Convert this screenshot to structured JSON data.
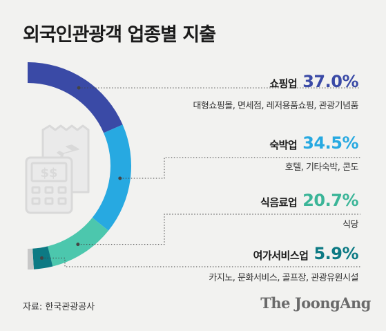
{
  "title": "외국인관광객 업종별 지출",
  "chart_data": {
    "type": "donut",
    "unit": "%",
    "categories": [
      {
        "name": "쇼핑업",
        "value": 37.0,
        "label": "37.0%",
        "detail": "대형쇼핑몰, 면세점, 레저용품쇼핑, 관광기념품",
        "color": "#3a4aa6"
      },
      {
        "name": "숙박업",
        "value": 34.5,
        "label": "34.5%",
        "detail": "호텔, 기타숙박, 콘도",
        "color": "#27a9e1"
      },
      {
        "name": "식음료업",
        "value": 20.7,
        "label": "20.7%",
        "detail": "식당",
        "color": "#4cc7ad"
      },
      {
        "name": "여가서비스업",
        "value": 5.9,
        "label": "5.9%",
        "detail": "카지노, 문화서비스, 골프장, 관광유원시설",
        "color": "#0d7a84"
      }
    ],
    "remainder_color": "#c8c8c8",
    "leader_line_color": "#444444"
  },
  "source": "자료: 한국관광공사",
  "brand": "The JoongAng"
}
